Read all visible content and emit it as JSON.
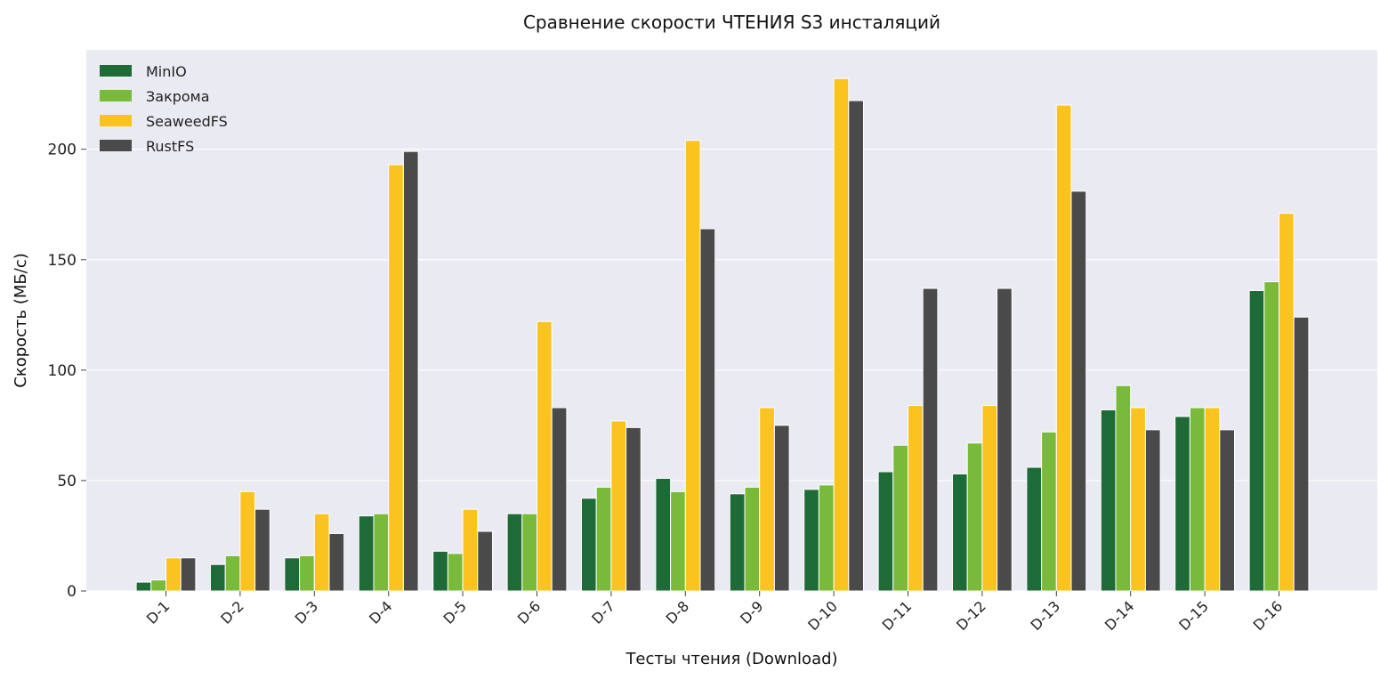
{
  "chart_data": {
    "type": "bar",
    "title": "Сравнение скорости ЧТЕНИЯ S3 инсталяций",
    "xlabel": "Тесты чтения (Download)",
    "ylabel": "Скорость (МБ/с)",
    "ylim": [
      0,
      245
    ],
    "yticks": [
      0,
      50,
      100,
      150,
      200
    ],
    "grid": true,
    "legend_position": "top-left",
    "background": "#eaeaf2",
    "categories": [
      "D-1",
      "D-2",
      "D-3",
      "D-4",
      "D-5",
      "D-6",
      "D-7",
      "D-8",
      "D-9",
      "D-10",
      "D-11",
      "D-12",
      "D-13",
      "D-14",
      "D-15",
      "D-16"
    ],
    "series": [
      {
        "name": "MinIO",
        "color": "#1e6b38",
        "values": [
          4,
          12,
          15,
          34,
          18,
          35,
          42,
          51,
          44,
          46,
          54,
          53,
          56,
          82,
          79,
          136
        ]
      },
      {
        "name": "Закрома",
        "color": "#7aba3a",
        "values": [
          5,
          16,
          16,
          35,
          17,
          35,
          47,
          45,
          47,
          48,
          66,
          67,
          72,
          93,
          83,
          140
        ]
      },
      {
        "name": "SeaweedFS",
        "color": "#fbc31f",
        "values": [
          15,
          45,
          35,
          193,
          37,
          122,
          77,
          204,
          83,
          232,
          84,
          84,
          220,
          83,
          83,
          171
        ]
      },
      {
        "name": "RustFS",
        "color": "#4a4a4a",
        "values": [
          15,
          37,
          26,
          199,
          27,
          83,
          74,
          164,
          75,
          222,
          137,
          137,
          181,
          73,
          73,
          124
        ]
      }
    ]
  }
}
